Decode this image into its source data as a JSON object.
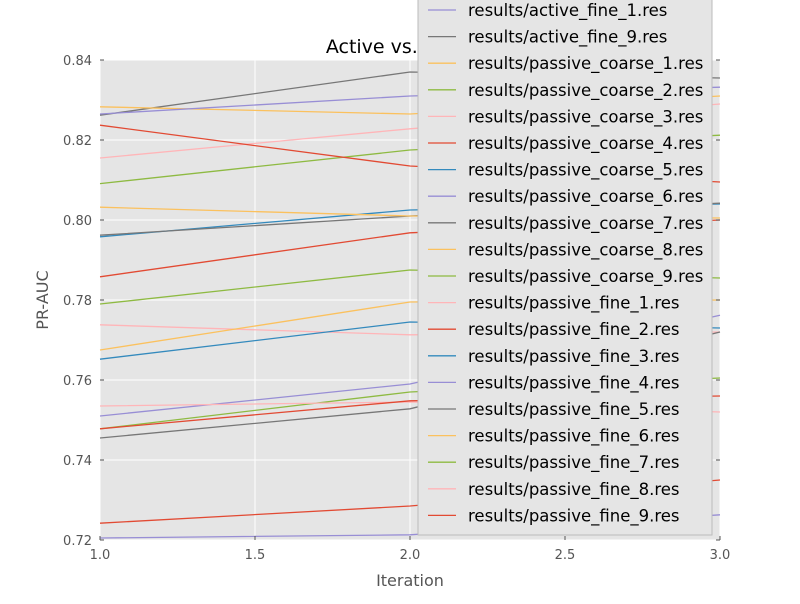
{
  "chart_data": {
    "type": "line",
    "title": "Active vs. Passive",
    "xlabel": "Iteration",
    "ylabel": "PR-AUC",
    "xlim": [
      1.0,
      3.0
    ],
    "ylim": [
      0.72,
      0.84
    ],
    "xticks": [
      "1.0",
      "1.5",
      "2.0",
      "2.5",
      "3.0"
    ],
    "yticks": [
      "0.72",
      "0.74",
      "0.76",
      "0.78",
      "0.80",
      "0.82",
      "0.84"
    ],
    "grid": true,
    "background_color": "#e5e5e5",
    "legend_position": "top-right",
    "x": [
      1,
      2,
      3
    ],
    "series": [
      {
        "name": "results/active_fine_1.res",
        "color": "#988ed5",
        "values": [
          0.7205,
          0.7213,
          0.7263
        ]
      },
      {
        "name": "results/active_fine_9.res",
        "color": "#777777",
        "values": [
          0.8262,
          0.837,
          0.8355
        ]
      },
      {
        "name": "results/passive_coarse_1.res",
        "color": "#fbc15e",
        "values": [
          0.8283,
          0.8265,
          0.831
        ]
      },
      {
        "name": "results/passive_coarse_2.res",
        "color": "#8eba42",
        "values": [
          0.8091,
          0.8175,
          0.8212
        ]
      },
      {
        "name": "results/passive_coarse_3.res",
        "color": "#ffb5b8",
        "values": [
          0.8155,
          0.8228,
          0.829
        ]
      },
      {
        "name": "results/passive_coarse_4.res",
        "color": "#e24a33",
        "values": [
          0.8237,
          0.8135,
          0.8095
        ]
      },
      {
        "name": "results/passive_coarse_5.res",
        "color": "#348abd",
        "values": [
          0.7958,
          0.8025,
          0.804
        ]
      },
      {
        "name": "results/passive_coarse_6.res",
        "color": "#988ed5",
        "values": [
          0.8265,
          0.831,
          0.8332
        ]
      },
      {
        "name": "results/passive_coarse_7.res",
        "color": "#777777",
        "values": [
          0.7962,
          0.801,
          0.8042
        ]
      },
      {
        "name": "results/passive_coarse_8.res",
        "color": "#fbc15e",
        "values": [
          0.8032,
          0.801,
          0.8005
        ]
      },
      {
        "name": "results/passive_coarse_9.res",
        "color": "#8eba42",
        "values": [
          0.779,
          0.7875,
          0.7855
        ]
      },
      {
        "name": "results/passive_fine_1.res",
        "color": "#ffb5b8",
        "values": [
          0.7738,
          0.7713,
          0.772
        ]
      },
      {
        "name": "results/passive_fine_2.res",
        "color": "#e24a33",
        "values": [
          0.7858,
          0.7968,
          0.8
        ]
      },
      {
        "name": "results/passive_fine_3.res",
        "color": "#348abd",
        "values": [
          0.7652,
          0.7745,
          0.773
        ]
      },
      {
        "name": "results/passive_fine_4.res",
        "color": "#988ed5",
        "values": [
          0.751,
          0.759,
          0.7762
        ]
      },
      {
        "name": "results/passive_fine_5.res",
        "color": "#777777",
        "values": [
          0.7455,
          0.7528,
          0.772
        ]
      },
      {
        "name": "results/passive_fine_6.res",
        "color": "#fbc15e",
        "values": [
          0.7675,
          0.7795,
          0.78
        ]
      },
      {
        "name": "results/passive_fine_7.res",
        "color": "#8eba42",
        "values": [
          0.7478,
          0.757,
          0.7605
        ]
      },
      {
        "name": "results/passive_fine_8.res",
        "color": "#ffb5b8",
        "values": [
          0.7535,
          0.7545,
          0.752
        ]
      },
      {
        "name": "results/passive_fine_9.res",
        "color": "#e24a33",
        "values": [
          0.7242,
          0.7285,
          0.735
        ]
      },
      {
        "name": "",
        "color": "#e24a33",
        "values": [
          0.7478,
          0.7548,
          0.756
        ]
      }
    ]
  }
}
